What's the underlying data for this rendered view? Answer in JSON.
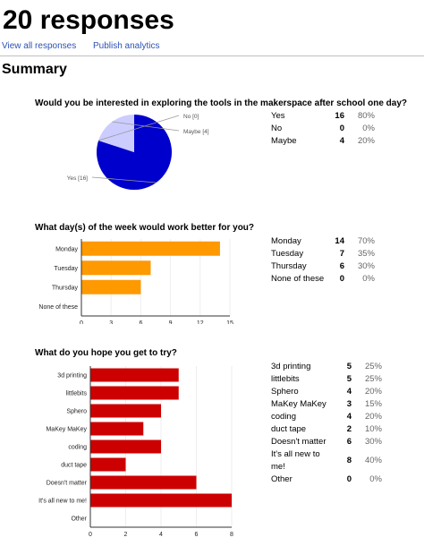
{
  "header": {
    "title": "20 responses",
    "view_all_label": "View all responses",
    "publish_label": "Publish analytics"
  },
  "summary_heading": "Summary",
  "questions": [
    {
      "question": "Would you be interested in exploring the tools in the makerspace after school one day?",
      "chart_type": "pie",
      "pie_labels": [
        "No [0]",
        "Maybe [4]",
        "Yes [16]"
      ],
      "rows": [
        {
          "label": "Yes",
          "count": "16",
          "percent": "80%"
        },
        {
          "label": "No",
          "count": "0",
          "percent": "0%"
        },
        {
          "label": "Maybe",
          "count": "4",
          "percent": "20%"
        }
      ]
    },
    {
      "question": "What day(s) of the week would work better for you?",
      "chart_type": "bar",
      "bar_color": "#ff9900",
      "rows": [
        {
          "label": "Monday",
          "count": "14",
          "percent": "70%"
        },
        {
          "label": "Tuesday",
          "count": "7",
          "percent": "35%"
        },
        {
          "label": "Thursday",
          "count": "6",
          "percent": "30%"
        },
        {
          "label": "None of these",
          "count": "0",
          "percent": "0%"
        }
      ]
    },
    {
      "question": "What do you hope you get to try?",
      "chart_type": "bar",
      "bar_color": "#cc0000",
      "rows": [
        {
          "label": "3d printing",
          "count": "5",
          "percent": "25%"
        },
        {
          "label": "littlebits",
          "count": "5",
          "percent": "25%"
        },
        {
          "label": "Sphero",
          "count": "4",
          "percent": "20%"
        },
        {
          "label": "MaKey MaKey",
          "count": "3",
          "percent": "15%"
        },
        {
          "label": "coding",
          "count": "4",
          "percent": "20%"
        },
        {
          "label": "duct tape",
          "count": "2",
          "percent": "10%"
        },
        {
          "label": "Doesn't matter",
          "count": "6",
          "percent": "30%"
        },
        {
          "label": "It's all new to me!",
          "count": "8",
          "percent": "40%"
        },
        {
          "label": "Other",
          "count": "0",
          "percent": "0%"
        }
      ]
    }
  ],
  "chart_data": [
    {
      "type": "pie",
      "categories": [
        "Yes",
        "No",
        "Maybe"
      ],
      "values": [
        16,
        0,
        4
      ],
      "colors": [
        "#0000cc",
        "#0000cc",
        "#ccccff"
      ]
    },
    {
      "type": "bar",
      "orientation": "horizontal",
      "categories": [
        "Monday",
        "Tuesday",
        "Thursday",
        "None of these"
      ],
      "values": [
        14,
        7,
        6,
        0
      ],
      "xlim": [
        0,
        15
      ],
      "xticks": [
        0,
        3,
        6,
        9,
        12,
        15
      ],
      "color": "#ff9900"
    },
    {
      "type": "bar",
      "orientation": "horizontal",
      "categories": [
        "3d printing",
        "littlebits",
        "Sphero",
        "MaKey MaKey",
        "coding",
        "duct tape",
        "Doesn't matter",
        "It's all new to me!",
        "Other"
      ],
      "values": [
        5,
        5,
        4,
        3,
        4,
        2,
        6,
        8,
        0
      ],
      "xlim": [
        0,
        8
      ],
      "xticks": [
        0,
        2,
        4,
        6,
        8
      ],
      "color": "#cc0000"
    }
  ]
}
